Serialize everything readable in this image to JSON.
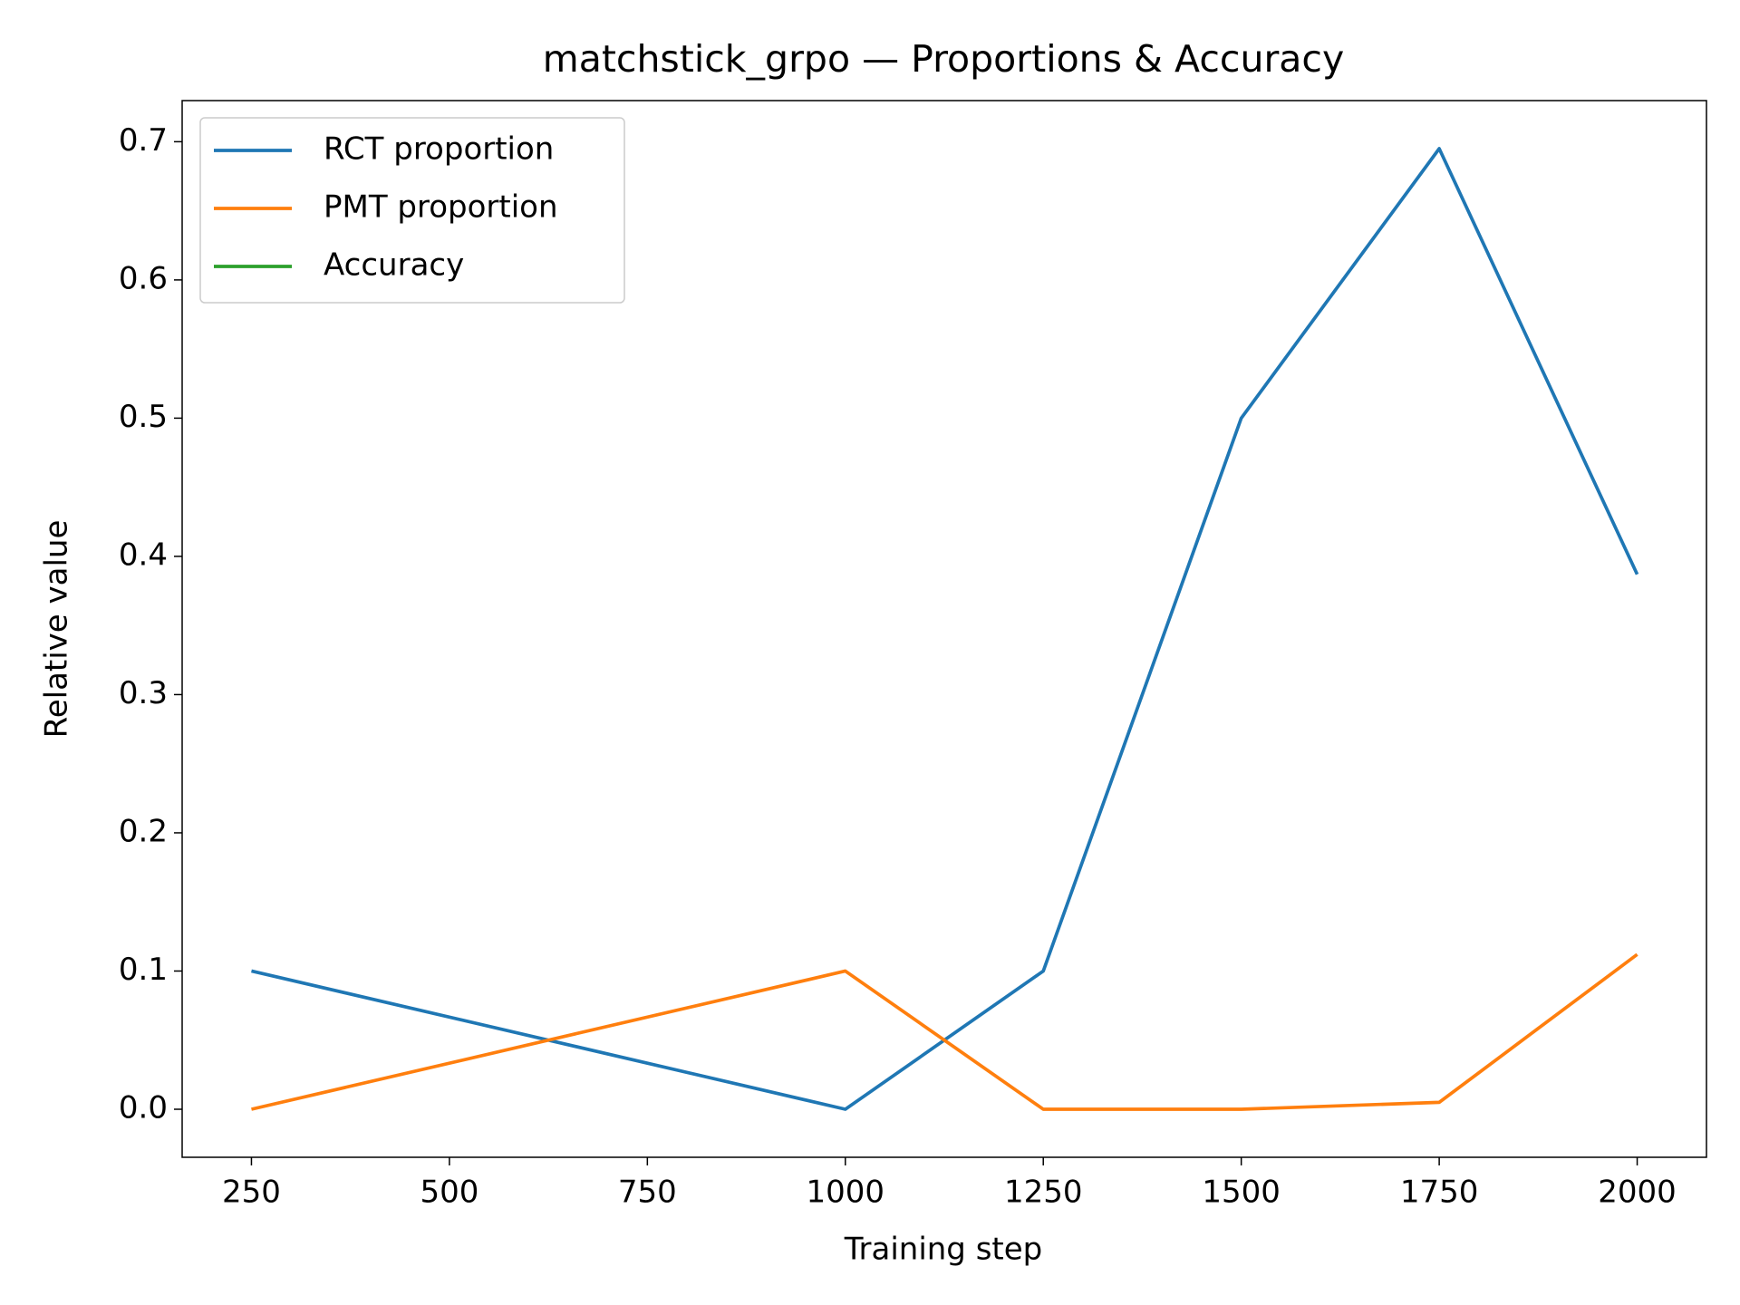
{
  "chart_data": {
    "type": "line",
    "title": "matchstick_grpo — Proportions & Accuracy",
    "xlabel": "Training step",
    "ylabel": "Relative value",
    "x": [
      250,
      1000,
      1250,
      1500,
      1750,
      2000
    ],
    "series": [
      {
        "name": "RCT proportion",
        "color": "#1f77b4",
        "values": [
          0.1,
          0.0,
          0.1,
          0.5,
          0.695,
          0.387
        ]
      },
      {
        "name": "PMT proportion",
        "color": "#ff7f0e",
        "values": [
          0.0,
          0.1,
          0.0,
          0.0,
          0.005,
          0.112
        ]
      },
      {
        "name": "Accuracy",
        "color": "#2ca02c",
        "values": [
          null,
          null,
          null,
          null,
          null,
          null
        ]
      }
    ],
    "xlim": [
      162.5,
      2087.5
    ],
    "xticks": [
      250,
      500,
      750,
      1000,
      1250,
      1500,
      1750,
      2000
    ],
    "ylim": [
      -0.03475,
      0.72975
    ],
    "yticks": [
      {
        "value": 0,
        "label": "0.0"
      },
      0.1,
      0.2,
      0.3,
      0.4,
      0.5,
      0.6,
      0.7
    ],
    "grid": false,
    "legend": "upper left"
  }
}
